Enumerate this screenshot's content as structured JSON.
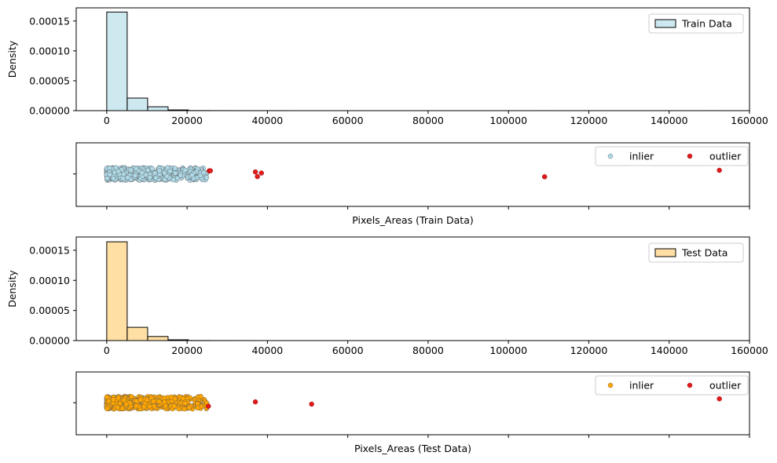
{
  "chart_data": [
    {
      "type": "histogram",
      "ylabel": "Density",
      "xlim": [
        -7600,
        160000
      ],
      "ylim": [
        0,
        0.000172
      ],
      "xticks": [
        0,
        20000,
        40000,
        60000,
        80000,
        100000,
        120000,
        140000,
        160000
      ],
      "xtick_labels": [
        "0",
        "20000",
        "40000",
        "60000",
        "80000",
        "100000",
        "120000",
        "140000",
        "160000"
      ],
      "yticks": [
        0,
        5e-05,
        0.0001,
        0.00015
      ],
      "ytick_labels": [
        "0.00000",
        "0.00005",
        "0.00010",
        "0.00015"
      ],
      "bin_width": 5090,
      "bins": [
        0,
        5090,
        10180,
        15270,
        20360,
        25450,
        30540,
        35630,
        40720,
        45810,
        50900,
        55990,
        61080,
        66170,
        71260,
        76350,
        81440,
        86530,
        91620,
        96710,
        101800,
        106890,
        111980,
        117070,
        122160,
        127250,
        132340,
        137430,
        142520,
        147610
      ],
      "density": [
        0.000165,
        2.1e-05,
        6.5e-06,
        1.2e-06,
        1.5e-07,
        8e-08,
        5e-08,
        4e-08,
        3e-08,
        0,
        0,
        0,
        0,
        0,
        0,
        0,
        0,
        0,
        0,
        0,
        0,
        2e-08,
        0,
        0,
        0,
        0,
        0,
        0,
        0,
        2e-08
      ],
      "legend": {
        "label": "Train Data",
        "position": "top-right"
      },
      "color": "#add8e6"
    },
    {
      "type": "strip",
      "xlabel": "Pixels_Areas (Train Data)",
      "xlim": [
        -7600,
        160000
      ],
      "xticks": [
        0,
        20000,
        40000,
        60000,
        80000,
        100000,
        120000,
        140000,
        160000
      ],
      "inlier_range": [
        0,
        25000
      ],
      "outliers": [
        25500,
        25800,
        37000,
        37500,
        38500,
        109000,
        152500
      ],
      "legend": {
        "inlier": "inlier",
        "outlier": "outlier",
        "position": "top-right"
      },
      "colors": {
        "inlier": "#add8e6",
        "outlier": "#e41a1c"
      }
    },
    {
      "type": "histogram",
      "ylabel": "Density",
      "xlim": [
        -7600,
        160000
      ],
      "ylim": [
        0,
        0.000172
      ],
      "xticks": [
        0,
        20000,
        40000,
        60000,
        80000,
        100000,
        120000,
        140000,
        160000
      ],
      "xtick_labels": [
        "0",
        "20000",
        "40000",
        "60000",
        "80000",
        "100000",
        "120000",
        "140000",
        "160000"
      ],
      "yticks": [
        0,
        5e-05,
        0.0001,
        0.00015
      ],
      "ytick_labels": [
        "0.00000",
        "0.00005",
        "0.00010",
        "0.00015"
      ],
      "bin_width": 5090,
      "bins": [
        0,
        5090,
        10180,
        15270,
        20360,
        25450,
        30540,
        35630,
        40720,
        45810,
        50900,
        55990,
        61080,
        66170,
        71260,
        76350,
        81440,
        86530,
        91620,
        96710,
        101800,
        106890,
        111980,
        117070,
        122160,
        127250,
        132340,
        137430,
        142520,
        147610
      ],
      "density": [
        0.000164,
        2.2e-05,
        6.8e-06,
        1.3e-06,
        1.5e-07,
        8e-08,
        4e-08,
        3e-08,
        0,
        0,
        2e-08,
        0,
        0,
        0,
        0,
        0,
        0,
        0,
        0,
        0,
        0,
        0,
        0,
        0,
        0,
        0,
        0,
        0,
        0,
        2e-08
      ],
      "legend": {
        "label": "Test Data",
        "position": "top-right"
      },
      "color": "#ffc966"
    },
    {
      "type": "strip",
      "xlabel": "Pixels_Areas (Test Data)",
      "xlim": [
        -7600,
        160000
      ],
      "xticks": [
        0,
        20000,
        40000,
        60000,
        80000,
        100000,
        120000,
        140000,
        160000
      ],
      "inlier_range": [
        0,
        25000
      ],
      "outliers": [
        25300,
        37000,
        51000,
        152500
      ],
      "legend": {
        "inlier": "inlier",
        "outlier": "outlier",
        "position": "top-right"
      },
      "colors": {
        "inlier": "#ffa500",
        "outlier": "#e41a1c"
      }
    }
  ]
}
